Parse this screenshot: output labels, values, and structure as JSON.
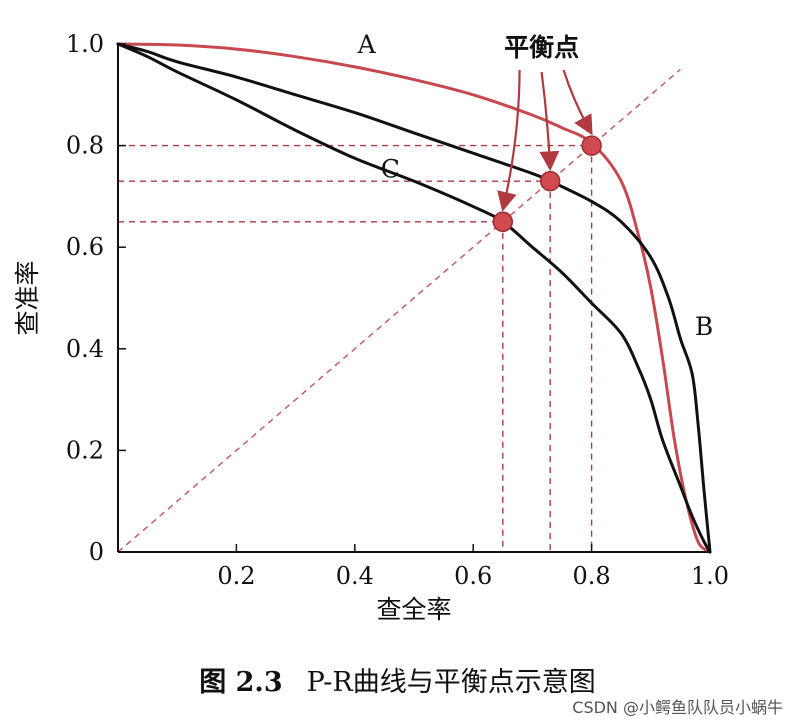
{
  "chart_data": {
    "type": "line",
    "xlabel": "查全率",
    "ylabel": "查准率",
    "xlim": [
      0,
      1
    ],
    "ylim": [
      0,
      1
    ],
    "x_ticks": [
      {
        "v": 0.2,
        "label": "0.2"
      },
      {
        "v": 0.4,
        "label": "0.4"
      },
      {
        "v": 0.6,
        "label": "0.6"
      },
      {
        "v": 0.8,
        "label": "0.8"
      },
      {
        "v": 1.0,
        "label": "1.0"
      }
    ],
    "y_ticks": [
      {
        "v": 0.0,
        "label": "0"
      },
      {
        "v": 0.2,
        "label": "0.2"
      },
      {
        "v": 0.4,
        "label": "0.4"
      },
      {
        "v": 0.6,
        "label": "0.6"
      },
      {
        "v": 0.8,
        "label": "0.8"
      },
      {
        "v": 1.0,
        "label": "1.0"
      }
    ],
    "series": [
      {
        "name": "A",
        "color": "#c8484f",
        "points": [
          [
            0,
            1.0
          ],
          [
            0.1,
            0.998
          ],
          [
            0.2,
            0.99
          ],
          [
            0.3,
            0.975
          ],
          [
            0.4,
            0.955
          ],
          [
            0.5,
            0.93
          ],
          [
            0.6,
            0.9
          ],
          [
            0.7,
            0.86
          ],
          [
            0.75,
            0.835
          ],
          [
            0.8,
            0.805
          ],
          [
            0.85,
            0.73
          ],
          [
            0.88,
            0.62
          ],
          [
            0.9,
            0.52
          ],
          [
            0.92,
            0.38
          ],
          [
            0.94,
            0.22
          ],
          [
            0.96,
            0.1
          ],
          [
            0.98,
            0.02
          ],
          [
            1.0,
            0
          ]
        ]
      },
      {
        "name": "B",
        "color": "#111111",
        "points": [
          [
            0,
            1.0
          ],
          [
            0.05,
            0.985
          ],
          [
            0.1,
            0.965
          ],
          [
            0.2,
            0.935
          ],
          [
            0.3,
            0.9
          ],
          [
            0.4,
            0.865
          ],
          [
            0.5,
            0.825
          ],
          [
            0.6,
            0.785
          ],
          [
            0.7,
            0.745
          ],
          [
            0.73,
            0.73
          ],
          [
            0.8,
            0.69
          ],
          [
            0.85,
            0.65
          ],
          [
            0.9,
            0.58
          ],
          [
            0.93,
            0.5
          ],
          [
            0.95,
            0.42
          ],
          [
            0.97,
            0.35
          ],
          [
            0.98,
            0.25
          ],
          [
            0.99,
            0.12
          ],
          [
            1.0,
            0
          ]
        ]
      },
      {
        "name": "C",
        "color": "#111111",
        "points": [
          [
            0,
            1.0
          ],
          [
            0.05,
            0.975
          ],
          [
            0.1,
            0.945
          ],
          [
            0.2,
            0.89
          ],
          [
            0.3,
            0.83
          ],
          [
            0.4,
            0.775
          ],
          [
            0.5,
            0.73
          ],
          [
            0.6,
            0.68
          ],
          [
            0.65,
            0.65
          ],
          [
            0.7,
            0.6
          ],
          [
            0.75,
            0.55
          ],
          [
            0.8,
            0.49
          ],
          [
            0.85,
            0.43
          ],
          [
            0.88,
            0.36
          ],
          [
            0.9,
            0.3
          ],
          [
            0.92,
            0.22
          ],
          [
            0.95,
            0.13
          ],
          [
            0.97,
            0.07
          ],
          [
            0.99,
            0.02
          ],
          [
            1.0,
            0
          ]
        ]
      }
    ],
    "curve_labels": [
      {
        "text": "A",
        "x": 0.42,
        "y": 1.0
      },
      {
        "text": "B",
        "x": 0.99,
        "y": 0.445
      },
      {
        "text": "C",
        "x": 0.46,
        "y": 0.755
      }
    ],
    "diagonal": {
      "from": [
        0,
        0
      ],
      "to": [
        0.95,
        0.95
      ],
      "color": "#c06060"
    },
    "balance_points": [
      {
        "x": 0.65,
        "y": 0.65
      },
      {
        "x": 0.73,
        "y": 0.73
      },
      {
        "x": 0.8,
        "y": 0.8
      }
    ],
    "balance_label": {
      "text": "平衡点",
      "x": 0.8,
      "y": 1.0
    },
    "grid": false
  },
  "caption": {
    "figure_number": "图 2.3",
    "text": "P-R曲线与平衡点示意图"
  },
  "watermark": "CSDN @小鳄鱼队队员小蜗牛"
}
